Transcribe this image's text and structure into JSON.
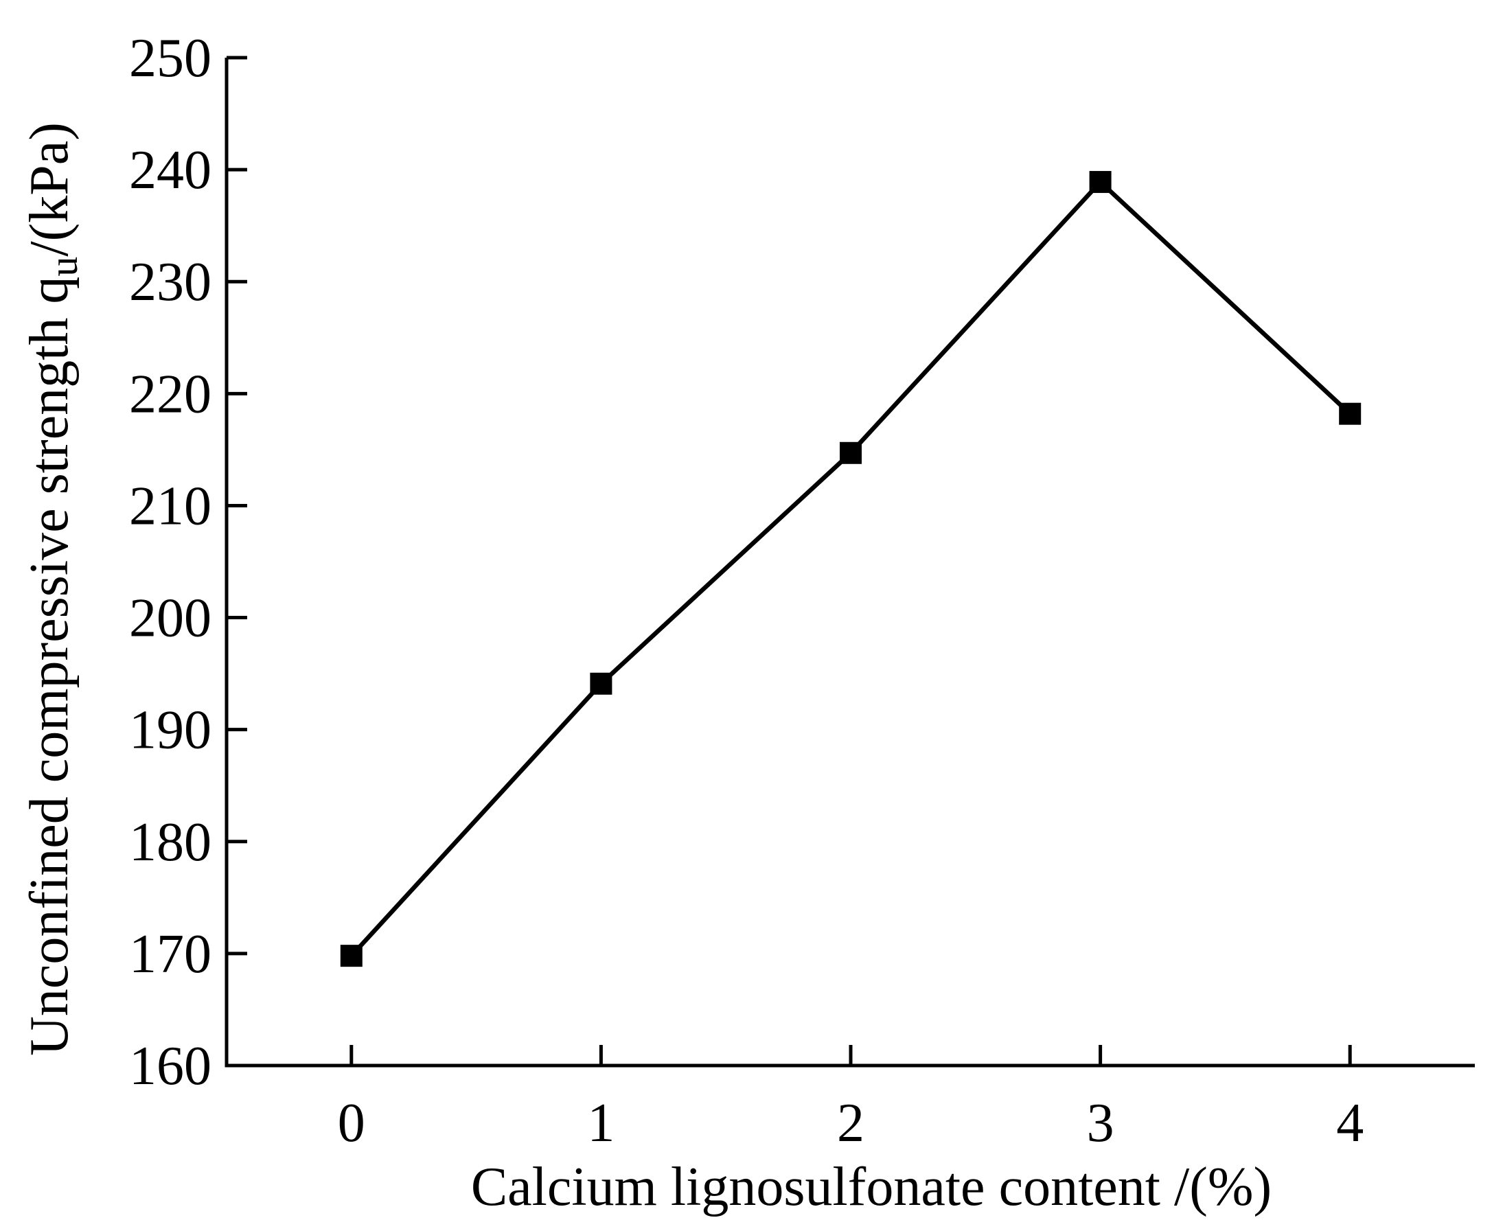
{
  "chart_data": {
    "type": "line",
    "title": "",
    "xlabel": "Calcium lignosulfonate content /(%)",
    "ylabel": {
      "main": "Unconfined compressive strength q",
      "sub": "u",
      "unit": "/(kPa)"
    },
    "x": [
      0,
      1,
      2,
      3,
      4
    ],
    "x_ticks": [
      "0",
      "1",
      "2",
      "3",
      "4"
    ],
    "xlim": [
      -0.5,
      4.5
    ],
    "ylim": [
      160,
      250
    ],
    "y_ticks": [
      "160",
      "170",
      "180",
      "190",
      "200",
      "210",
      "220",
      "230",
      "240",
      "250"
    ],
    "grid": false,
    "legend": "none",
    "series": [
      {
        "marker": "square",
        "color": "#000000",
        "values": [
          169.8,
          194.1,
          214.7,
          238.9,
          218.2
        ]
      }
    ]
  }
}
